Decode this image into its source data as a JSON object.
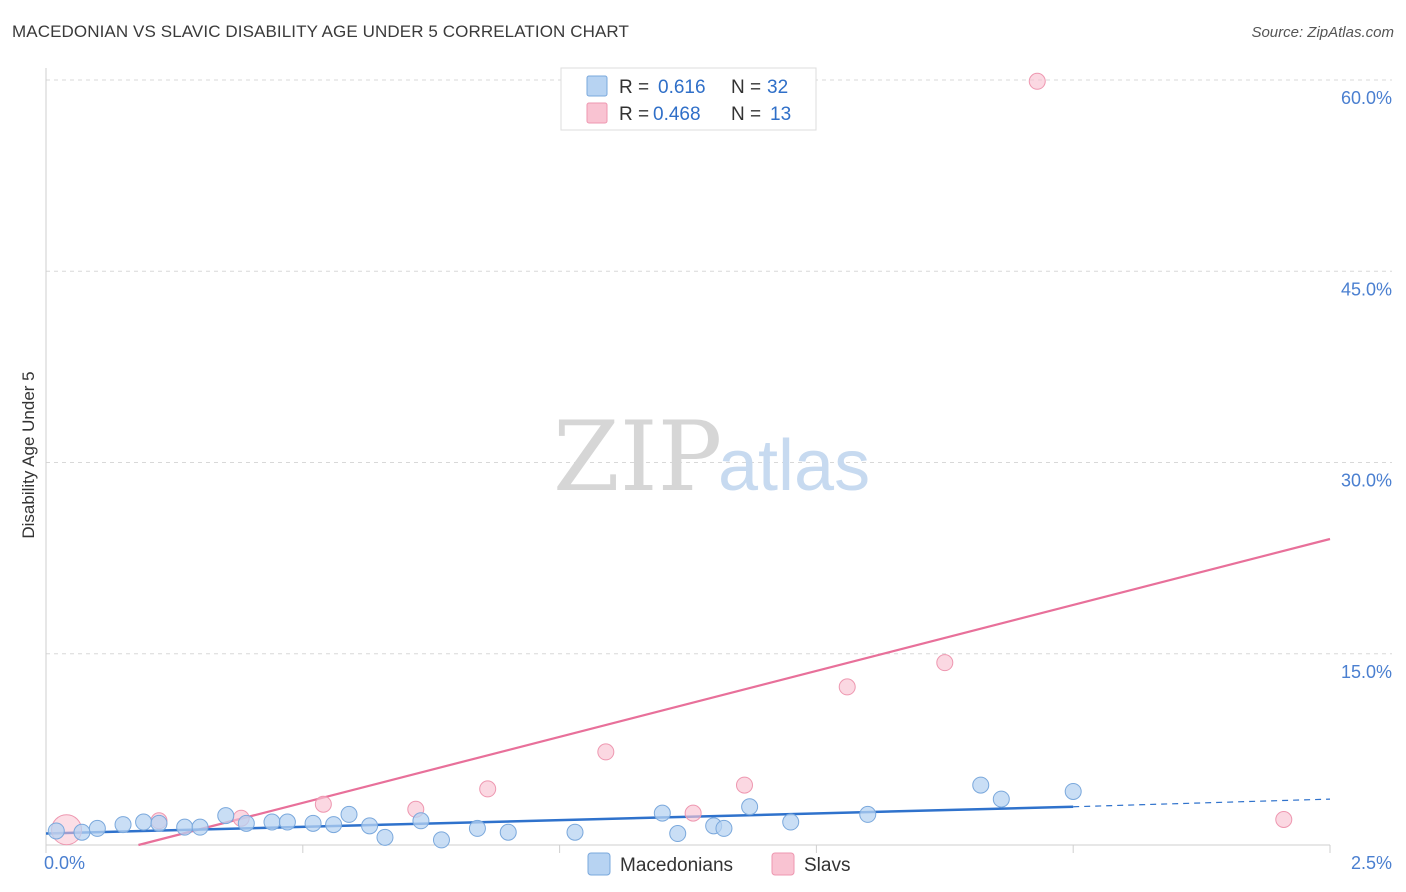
{
  "title": "MACEDONIAN VS SLAVIC DISABILITY AGE UNDER 5 CORRELATION CHART",
  "source": "Source: ZipAtlas.com",
  "watermark": {
    "zip": "ZIP",
    "atlas": "atlas"
  },
  "colors": {
    "macedonians_fill": "#b7d3f2",
    "macedonians_stroke": "#7aa8dc",
    "macedonians_line": "#2f72cc",
    "slavs_fill": "#f9c3d2",
    "slavs_stroke": "#ee97b0",
    "slavs_line": "#e8709a",
    "grid": "#d8d8d8",
    "axis_text": "#4a7fd0"
  },
  "legend": {
    "rows": [
      {
        "r_label": "R =",
        "r_value": "0.616",
        "n_label": "N =",
        "n_value": "32"
      },
      {
        "r_label": "R =",
        "r_value": "0.468",
        "n_label": "N =",
        "n_value": "13"
      }
    ]
  },
  "chart_data": {
    "type": "scatter",
    "title": "MACEDONIAN VS SLAVIC DISABILITY AGE UNDER 5 CORRELATION CHART",
    "xlabel": "",
    "ylabel": "Disability Age Under 5",
    "xlim": [
      0,
      2.5
    ],
    "ylim": [
      0,
      60
    ],
    "x_tick_labels": [
      "0.0%",
      "2.5%"
    ],
    "y_ticks": [
      15,
      30,
      45,
      60
    ],
    "y_tick_labels": [
      "15.0%",
      "30.0%",
      "45.0%",
      "60.0%"
    ],
    "series": [
      {
        "name": "Macedonians",
        "r": 0.616,
        "n": 32,
        "points": [
          [
            0.02,
            1.1
          ],
          [
            0.07,
            1.0
          ],
          [
            0.1,
            1.3
          ],
          [
            0.15,
            1.6
          ],
          [
            0.19,
            1.8
          ],
          [
            0.22,
            1.7
          ],
          [
            0.27,
            1.4
          ],
          [
            0.3,
            1.4
          ],
          [
            0.35,
            2.3
          ],
          [
            0.39,
            1.7
          ],
          [
            0.44,
            1.8
          ],
          [
            0.47,
            1.8
          ],
          [
            0.52,
            1.7
          ],
          [
            0.56,
            1.6
          ],
          [
            0.59,
            2.4
          ],
          [
            0.63,
            1.5
          ],
          [
            0.66,
            0.6
          ],
          [
            0.73,
            1.9
          ],
          [
            0.77,
            0.4
          ],
          [
            0.84,
            1.3
          ],
          [
            0.9,
            1.0
          ],
          [
            1.03,
            1.0
          ],
          [
            1.2,
            2.5
          ],
          [
            1.23,
            0.9
          ],
          [
            1.3,
            1.5
          ],
          [
            1.32,
            1.3
          ],
          [
            1.37,
            3.0
          ],
          [
            1.45,
            1.8
          ],
          [
            1.6,
            2.4
          ],
          [
            1.82,
            4.7
          ],
          [
            1.86,
            3.6
          ],
          [
            2.0,
            4.2
          ]
        ],
        "trend": {
          "x0": 0.0,
          "y0": 0.9,
          "x1": 2.0,
          "y1": 3.0,
          "dashed_to_x": 2.5,
          "dashed_to_y": 3.6
        }
      },
      {
        "name": "Slavs",
        "r": 0.468,
        "n": 13,
        "points": [
          [
            0.04,
            1.2
          ],
          [
            0.22,
            1.9
          ],
          [
            0.38,
            2.1
          ],
          [
            0.54,
            3.2
          ],
          [
            0.72,
            2.8
          ],
          [
            0.86,
            4.4
          ],
          [
            1.09,
            7.3
          ],
          [
            1.26,
            2.5
          ],
          [
            1.36,
            4.7
          ],
          [
            1.56,
            12.4
          ],
          [
            1.75,
            14.3
          ],
          [
            1.93,
            59.9
          ],
          [
            2.41,
            2.0
          ]
        ],
        "trend": {
          "x0": 0.18,
          "y0": 0.0,
          "x1": 2.5,
          "y1": 24.0
        }
      }
    ]
  },
  "bottom_legend": {
    "items": [
      "Macedonians",
      "Slavs"
    ]
  }
}
